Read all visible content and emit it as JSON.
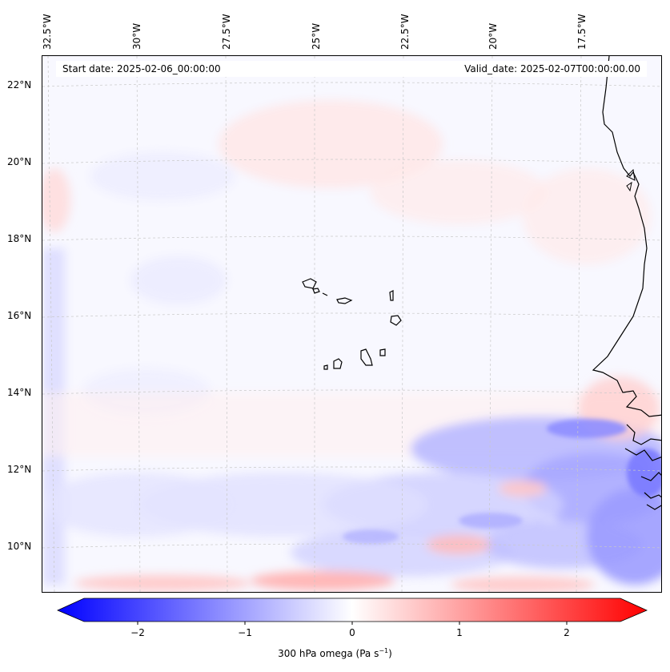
{
  "map": {
    "start_date": "Start date: 2025-02-06_00:00:00",
    "valid_date": "Valid_date: 2025-02-07T00:00:00.00",
    "lon_labels": [
      "32.5°W",
      "30°W",
      "27.5°W",
      "25°W",
      "22.5°W",
      "20°W",
      "17.5°W"
    ],
    "lat_labels": [
      "22°N",
      "20°N",
      "18°N",
      "16°N",
      "14°N",
      "12°N",
      "10°N"
    ],
    "lon_range": [
      -33.0,
      -15.5
    ],
    "lat_range": [
      9.0,
      22.8
    ],
    "field": "300 hPa omega"
  },
  "colorbar": {
    "label_prefix": "300 hPa omega (Pa s",
    "label_sup": "−1",
    "label_suffix": ")",
    "ticks": [
      "−2",
      "−1",
      "0",
      "1",
      "2"
    ],
    "tick_values": [
      -2,
      -1,
      0,
      1,
      2
    ],
    "range": [
      -2.5,
      2.5
    ],
    "neg_color": "#0000ff",
    "mid_color": "#ffffff",
    "pos_color": "#ff0000"
  },
  "colors": {
    "coastline": "#000000",
    "gridline": "#c8c8c8",
    "ocean_background": "#f8f8ff"
  }
}
